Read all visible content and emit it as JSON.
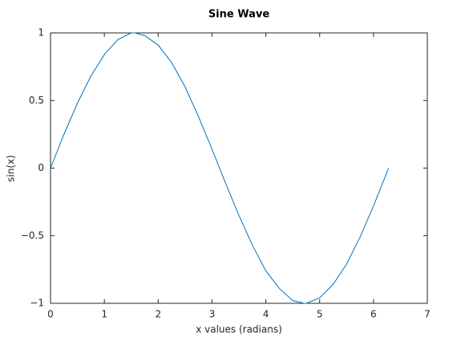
{
  "chart_data": {
    "type": "line",
    "title": "Sine Wave",
    "x_label": "x values (radians)",
    "y_label": "sin(x)",
    "series": [
      {
        "color": "#0072bd",
        "x": [
          0,
          0.25,
          0.5,
          0.75,
          1.0,
          1.25,
          1.5,
          1.57,
          1.75,
          2.0,
          2.25,
          2.5,
          2.75,
          3.0,
          3.25,
          3.5,
          3.75,
          4.0,
          4.25,
          4.5,
          4.71,
          4.75,
          5.0,
          5.25,
          5.5,
          5.75,
          6.0,
          6.25,
          6.28
        ],
        "values": [
          0,
          0.25,
          0.48,
          0.68,
          0.84,
          0.95,
          1.0,
          1,
          0.98,
          0.91,
          0.78,
          0.6,
          0.38,
          0.14,
          -0.11,
          -0.35,
          -0.57,
          -0.76,
          -0.89,
          -0.98,
          -1,
          -1,
          -0.96,
          -0.86,
          -0.71,
          -0.51,
          -0.28,
          -0.03,
          0
        ]
      }
    ],
    "xlim": [
      0,
      7
    ],
    "xticks": [
      0,
      1,
      2,
      3,
      4,
      5,
      6,
      7
    ],
    "ylim": [
      -1,
      1
    ],
    "yticks": [
      {
        "value": -1,
        "label": "−1"
      },
      {
        "value": -0.5,
        "label": "−0.5"
      },
      0,
      0.5,
      1
    ],
    "grid": false
  }
}
